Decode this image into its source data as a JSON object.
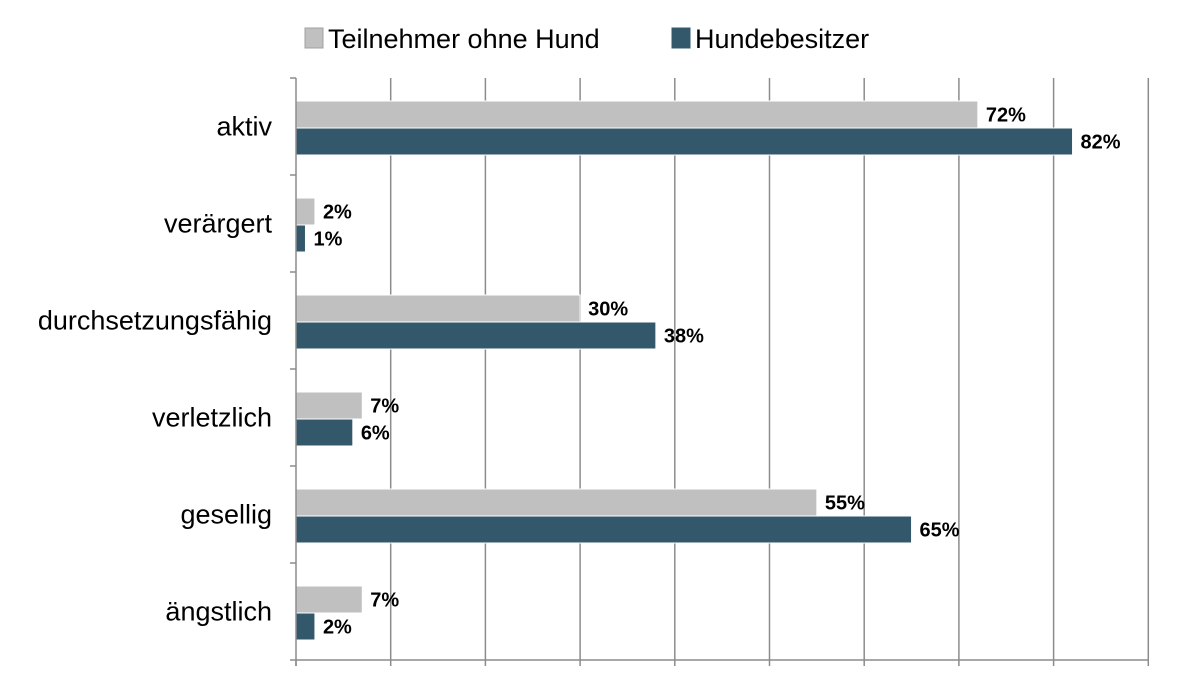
{
  "chart_data": {
    "type": "bar",
    "orientation": "horizontal",
    "categories": [
      "aktiv",
      "verärgert",
      "durchsetzungsfähig",
      "verletzlich",
      "gesellig",
      "ängstlich"
    ],
    "series": [
      {
        "name": "Teilnehmer ohne Hund",
        "color": "#C0C0C0",
        "values": [
          72,
          2,
          30,
          7,
          55,
          7
        ],
        "labels": [
          "72%",
          "2%",
          "30%",
          "7%",
          "55%",
          "7%"
        ]
      },
      {
        "name": "Hundebesitzer",
        "color": "#34586B",
        "values": [
          82,
          1,
          38,
          6,
          65,
          2
        ],
        "labels": [
          "82%",
          "1%",
          "38%",
          "6%",
          "65%",
          "2%"
        ]
      }
    ],
    "xlim": [
      0,
      90
    ],
    "x_major_step": 10,
    "grid": true,
    "legend_position": "top"
  }
}
